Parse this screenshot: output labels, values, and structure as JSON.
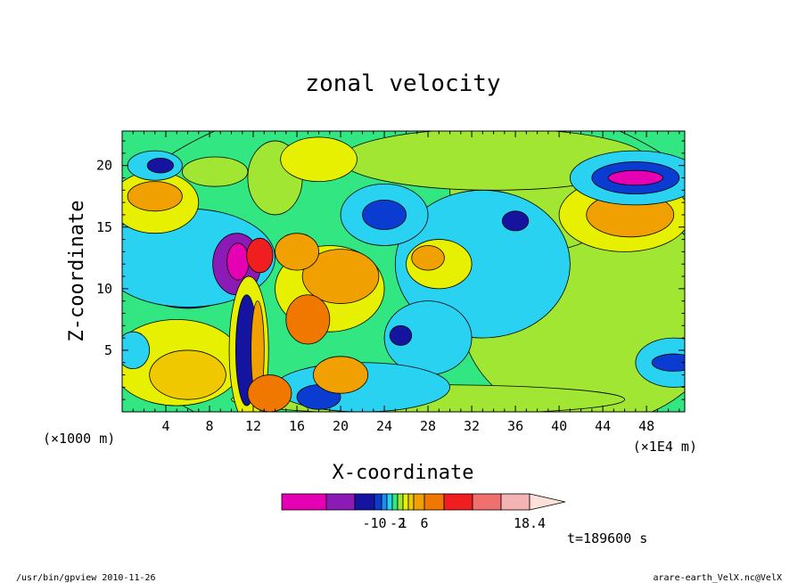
{
  "chart_data": {
    "type": "heatmap",
    "title": "zonal velocity",
    "xlabel": "X-coordinate",
    "ylabel": "Z-coordinate",
    "x_unit_left": "(×1000 m)",
    "x_unit_right": "(×1E4 m)",
    "xlim": [
      0,
      51.5
    ],
    "ylim": [
      0,
      22.8
    ],
    "x_ticks": [
      4,
      8,
      12,
      16,
      20,
      24,
      28,
      32,
      36,
      40,
      44,
      48
    ],
    "y_ticks": [
      5,
      10,
      15,
      20
    ],
    "colorbar": {
      "colors": [
        "#e600b4",
        "#8c1ab4",
        "#1414a0",
        "#0a3cd2",
        "#1e8cf0",
        "#28d2f0",
        "#32e682",
        "#a0e632",
        "#e6f000",
        "#f0c800",
        "#f0a000",
        "#f07800",
        "#f01e1e",
        "#f07070",
        "#f5b4b4",
        "#fde0d8"
      ],
      "labels": [
        "-10",
        "-2",
        "1",
        "6",
        "18.4"
      ],
      "label_positions": [
        3,
        7,
        8,
        11,
        16
      ]
    },
    "regions": [
      {
        "kind": "ellipse",
        "cx": 27,
        "cy": 11,
        "rx": 30,
        "ry": 15,
        "value": 0
      },
      {
        "kind": "ellipse",
        "cx": 43,
        "cy": 8,
        "rx": 12,
        "ry": 9,
        "value": 1
      },
      {
        "kind": "ellipse",
        "cx": 38,
        "cy": 18,
        "rx": 8,
        "ry": 5,
        "value": 1
      },
      {
        "kind": "ellipse",
        "cx": 34,
        "cy": 20.5,
        "rx": 14,
        "ry": 2.5,
        "value": 1
      },
      {
        "kind": "ellipse",
        "cx": 46,
        "cy": 16,
        "rx": 6,
        "ry": 3,
        "value": 2
      },
      {
        "kind": "ellipse",
        "cx": 46.5,
        "cy": 16,
        "rx": 4,
        "ry": 1.8,
        "value": 4
      },
      {
        "kind": "ellipse",
        "cx": 47,
        "cy": 19,
        "rx": 6,
        "ry": 2.2,
        "value": -1
      },
      {
        "kind": "ellipse",
        "cx": 47,
        "cy": 19,
        "rx": 4,
        "ry": 1.3,
        "value": -3
      },
      {
        "kind": "ellipse",
        "cx": 47,
        "cy": 19,
        "rx": 2.5,
        "ry": 0.6,
        "value": -6
      },
      {
        "kind": "ellipse",
        "cx": 33,
        "cy": 12,
        "rx": 8,
        "ry": 6,
        "value": -1
      },
      {
        "kind": "ellipse",
        "cx": 36,
        "cy": 15.5,
        "rx": 1.2,
        "ry": 0.8,
        "value": -4
      },
      {
        "kind": "ellipse",
        "cx": 28,
        "cy": 6,
        "rx": 4,
        "ry": 3,
        "value": -1
      },
      {
        "kind": "ellipse",
        "cx": 25.5,
        "cy": 6.2,
        "rx": 1,
        "ry": 0.8,
        "value": -4
      },
      {
        "kind": "ellipse",
        "cx": 50.5,
        "cy": 4,
        "rx": 3.5,
        "ry": 2,
        "value": -1
      },
      {
        "kind": "ellipse",
        "cx": 50.5,
        "cy": 4,
        "rx": 2,
        "ry": 0.7,
        "value": -3
      },
      {
        "kind": "ellipse",
        "cx": 28,
        "cy": 1,
        "rx": 18,
        "ry": 1.2,
        "value": 1
      },
      {
        "kind": "ellipse",
        "cx": 6,
        "cy": 11,
        "rx": 5,
        "ry": 2.6,
        "value": -3
      },
      {
        "kind": "ellipse",
        "cx": 6,
        "cy": 12.5,
        "rx": 8,
        "ry": 4,
        "value": -1
      },
      {
        "kind": "ellipse",
        "cx": 3,
        "cy": 17,
        "rx": 4,
        "ry": 2.5,
        "value": 2
      },
      {
        "kind": "ellipse",
        "cx": 3,
        "cy": 17.5,
        "rx": 2.5,
        "ry": 1.2,
        "value": 4
      },
      {
        "kind": "ellipse",
        "cx": 3,
        "cy": 20,
        "rx": 2.5,
        "ry": 1.2,
        "value": -1
      },
      {
        "kind": "ellipse",
        "cx": 3.5,
        "cy": 20,
        "rx": 1.2,
        "ry": 0.6,
        "value": -4
      },
      {
        "kind": "ellipse",
        "cx": 5,
        "cy": 4,
        "rx": 6,
        "ry": 3.5,
        "value": 2
      },
      {
        "kind": "ellipse",
        "cx": 6,
        "cy": 3,
        "rx": 3.5,
        "ry": 2,
        "value": 3
      },
      {
        "kind": "ellipse",
        "cx": 1,
        "cy": 5,
        "rx": 1.5,
        "ry": 1.5,
        "value": -1
      },
      {
        "kind": "ellipse",
        "cx": 10.5,
        "cy": 12,
        "rx": 2.2,
        "ry": 2.5,
        "value": -5
      },
      {
        "kind": "ellipse",
        "cx": 10.6,
        "cy": 12.2,
        "rx": 1,
        "ry": 1.5,
        "value": -9
      },
      {
        "kind": "ellipse",
        "cx": 12.6,
        "cy": 12.7,
        "rx": 1.2,
        "ry": 1.4,
        "value": 6
      },
      {
        "kind": "ellipse",
        "cx": 11.6,
        "cy": 5,
        "rx": 1.8,
        "ry": 6,
        "value": 2
      },
      {
        "kind": "ellipse",
        "cx": 11.4,
        "cy": 5,
        "rx": 1,
        "ry": 4.5,
        "value": -4
      },
      {
        "kind": "ellipse",
        "cx": 12.4,
        "cy": 5,
        "rx": 0.6,
        "ry": 4,
        "value": 4
      },
      {
        "kind": "ellipse",
        "cx": 19,
        "cy": 10,
        "rx": 5,
        "ry": 3.5,
        "value": 2
      },
      {
        "kind": "ellipse",
        "cx": 20,
        "cy": 11,
        "rx": 3.5,
        "ry": 2.2,
        "value": 4
      },
      {
        "kind": "ellipse",
        "cx": 17,
        "cy": 7.5,
        "rx": 2,
        "ry": 2,
        "value": 5
      },
      {
        "kind": "ellipse",
        "cx": 16,
        "cy": 13,
        "rx": 2,
        "ry": 1.5,
        "value": 4
      },
      {
        "kind": "ellipse",
        "cx": 24,
        "cy": 16,
        "rx": 4,
        "ry": 2.5,
        "value": -1
      },
      {
        "kind": "ellipse",
        "cx": 24,
        "cy": 16,
        "rx": 2,
        "ry": 1.2,
        "value": -3
      },
      {
        "kind": "ellipse",
        "cx": 29,
        "cy": 12,
        "rx": 3,
        "ry": 2,
        "value": 2
      },
      {
        "kind": "ellipse",
        "cx": 28,
        "cy": 12.5,
        "rx": 1.5,
        "ry": 1,
        "value": 4
      },
      {
        "kind": "ellipse",
        "cx": 22,
        "cy": 2,
        "rx": 8,
        "ry": 2,
        "value": -1
      },
      {
        "kind": "ellipse",
        "cx": 18,
        "cy": 1.2,
        "rx": 2,
        "ry": 1,
        "value": -3
      },
      {
        "kind": "ellipse",
        "cx": 20,
        "cy": 3,
        "rx": 2.5,
        "ry": 1.5,
        "value": 4
      },
      {
        "kind": "ellipse",
        "cx": 14,
        "cy": 19,
        "rx": 2.5,
        "ry": 3,
        "value": 1
      },
      {
        "kind": "ellipse",
        "cx": 18,
        "cy": 20.5,
        "rx": 3.5,
        "ry": 1.8,
        "value": 2
      },
      {
        "kind": "ellipse",
        "cx": 8.5,
        "cy": 19.5,
        "rx": 3,
        "ry": 1.2,
        "value": 1
      },
      {
        "kind": "ellipse",
        "cx": 13.5,
        "cy": 1.5,
        "rx": 2,
        "ry": 1.5,
        "value": 5
      }
    ]
  },
  "annotations": {
    "time": "t=189600 s",
    "footer_left": "/usr/bin/gpview   2010-11-26",
    "footer_right": "arare-earth_VelX.nc@VelX"
  }
}
